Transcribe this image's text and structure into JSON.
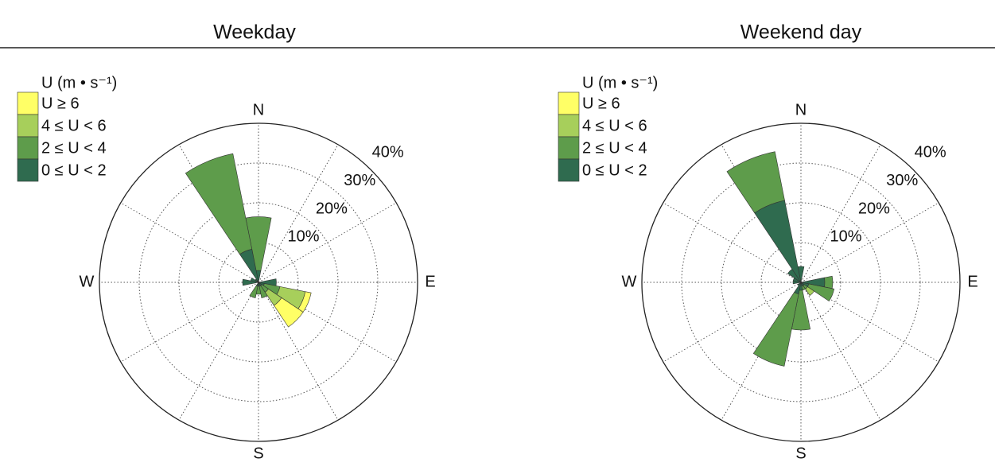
{
  "chart_data": [
    {
      "type": "wind-rose",
      "title": "Weekday",
      "categories": [
        "N",
        null,
        null,
        null,
        "E",
        null,
        null,
        null,
        "S",
        null,
        null,
        null,
        "W",
        null,
        null,
        null
      ],
      "series": [
        {
          "name": "0 ≤ U < 2",
          "color": "#2f6b4f",
          "values": [
            3,
            0,
            0,
            0,
            4.5,
            1.5,
            1,
            1,
            1,
            1,
            0,
            0,
            4,
            2,
            1,
            8.5
          ]
        },
        {
          "name": "2 ≤ U < 4",
          "color": "#5e9c4b",
          "values": [
            13.5,
            0,
            0,
            0,
            0,
            4,
            2,
            3,
            2,
            3,
            0,
            0,
            0,
            0,
            0,
            24.5
          ]
        },
        {
          "name": "4 ≤ U < 6",
          "color": "#a7cf5b",
          "values": [
            0,
            0,
            0,
            0,
            0,
            6.5,
            4,
            0,
            0,
            0,
            0,
            0,
            0,
            0,
            0,
            0
          ]
        },
        {
          "name": "U ≥ 6",
          "color": "#ffff66",
          "values": [
            0,
            0,
            0,
            0,
            0,
            1.5,
            6.5,
            0,
            0,
            0,
            0,
            0,
            0,
            0,
            0,
            0
          ]
        }
      ],
      "legend_title": "U (m • s⁻¹)",
      "legend": "upper left",
      "rlim": [
        0,
        40
      ],
      "rticks": [
        {
          "value": 10,
          "label": "10%"
        },
        {
          "value": 20,
          "label": "20%"
        },
        {
          "value": 30,
          "label": "30%"
        },
        {
          "value": 40,
          "label": "40%"
        }
      ]
    },
    {
      "type": "wind-rose",
      "title": "Weekend day",
      "categories": [
        "N",
        null,
        null,
        null,
        "E",
        null,
        null,
        null,
        "S",
        null,
        null,
        null,
        "W",
        null,
        null,
        null
      ],
      "series": [
        {
          "name": "0 ≤ U < 2",
          "color": "#2f6b4f",
          "values": [
            4,
            0,
            0,
            0,
            6,
            2,
            1,
            1,
            2,
            3,
            1,
            0,
            2,
            2,
            4,
            21
          ]
        },
        {
          "name": "2 ≤ U < 4",
          "color": "#5e9c4b",
          "values": [
            0,
            0,
            0,
            0,
            2,
            6.5,
            1,
            1,
            10,
            18.5,
            0,
            0,
            0,
            0,
            0,
            12.5
          ]
        },
        {
          "name": "4 ≤ U < 6",
          "color": "#a7cf5b",
          "values": [
            0,
            0,
            0,
            0,
            0,
            0,
            2,
            0,
            0,
            0,
            0,
            0,
            0,
            0,
            0,
            0
          ]
        },
        {
          "name": "U ≥ 6",
          "color": "#ffff66",
          "values": [
            0,
            0,
            0,
            0,
            0,
            0,
            0,
            0,
            0,
            0,
            0,
            0,
            0,
            0,
            0,
            0
          ]
        }
      ],
      "legend_title": "U (m • s⁻¹)",
      "legend": "upper left",
      "rlim": [
        0,
        40
      ],
      "rticks": [
        {
          "value": 10,
          "label": "10%"
        },
        {
          "value": 20,
          "label": "20%"
        },
        {
          "value": 30,
          "label": "30%"
        },
        {
          "value": 40,
          "label": "40%"
        }
      ]
    }
  ]
}
